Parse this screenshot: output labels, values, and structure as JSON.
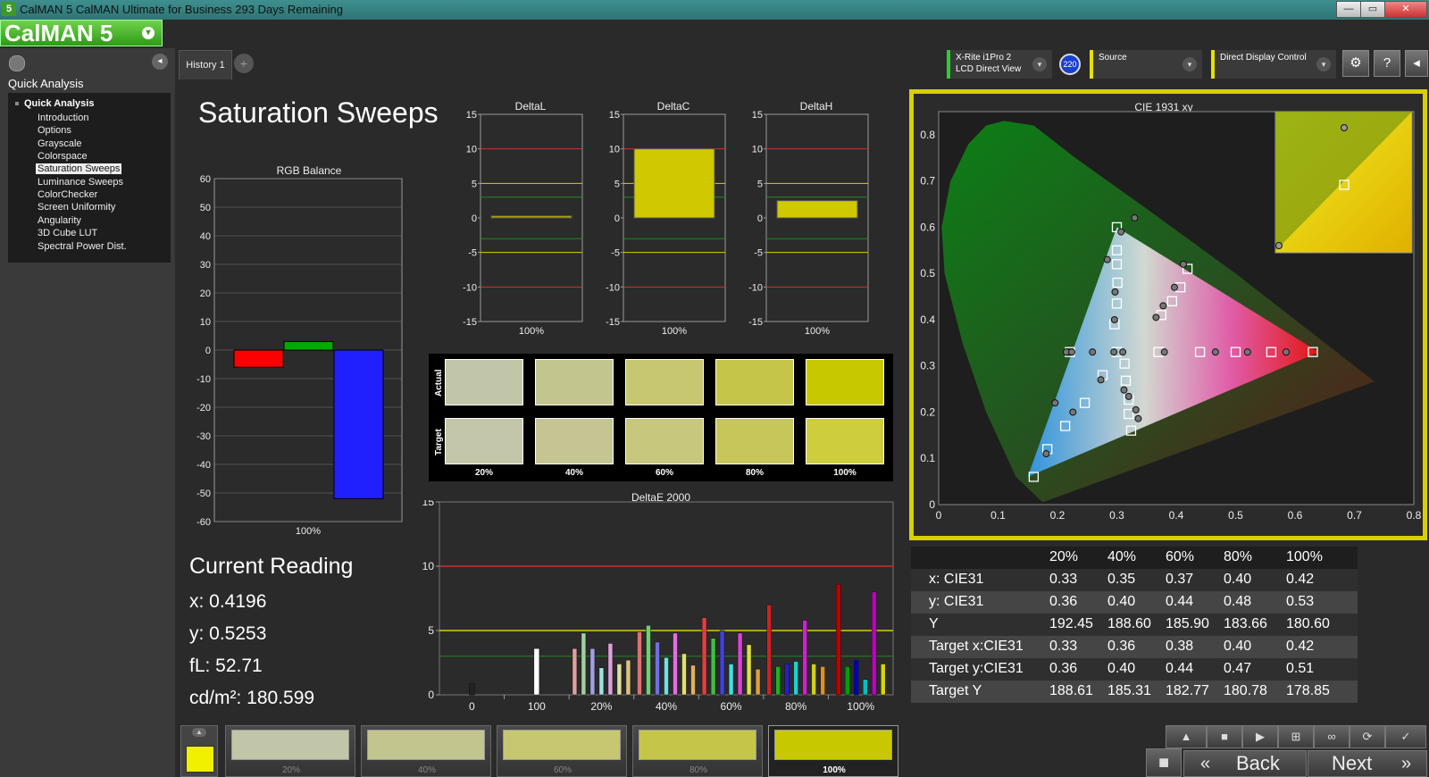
{
  "window": {
    "title": "CalMAN 5 CalMAN Ultimate for Business 293 Days Remaining",
    "minimize": "—",
    "restore": "▭",
    "close": "✕",
    "app_icon": "5"
  },
  "logo": {
    "text": "CalMAN 5",
    "dropdown": "▾"
  },
  "left_panel": {
    "header": "Quick Analysis",
    "collapse": "◂",
    "tree": {
      "root": "Quick Analysis",
      "items": [
        "Introduction",
        "Options",
        "Grayscale",
        "Colorspace",
        "Saturation Sweeps",
        "Luminance Sweeps",
        "ColorChecker",
        "Screen Uniformity",
        "Angularity",
        "3D Cube LUT",
        "Spectral Power Dist."
      ],
      "selected_index": 4
    }
  },
  "tabs": {
    "history": "History 1",
    "add": "+"
  },
  "devices": {
    "meter": {
      "line1": "X-Rite i1Pro 2",
      "line2": "LCD Direct View",
      "arrow": "▾"
    },
    "meter_badge": "220",
    "source": {
      "label": "Source",
      "arrow": "▾"
    },
    "display": {
      "label": "Direct Display Control",
      "arrow": "▾"
    },
    "settings_icon": "⚙",
    "help_icon": "?",
    "collapse_icon": "◂"
  },
  "page": {
    "title": "Saturation Sweeps"
  },
  "charts": {
    "rgb_balance": {
      "title": "RGB Balance",
      "xlabel": "100%",
      "ticks": [
        "60",
        "50",
        "40",
        "30",
        "20",
        "10",
        "0",
        "-10",
        "-20",
        "-30",
        "-40",
        "-50",
        "-60"
      ]
    },
    "deltaL": {
      "title": "DeltaL",
      "xlabel": "100%"
    },
    "deltaC": {
      "title": "DeltaC",
      "xlabel": "100%"
    },
    "deltaH": {
      "title": "DeltaH",
      "xlabel": "100%"
    },
    "delta_ticks": [
      "15",
      "10",
      "5",
      "0",
      "-5",
      "-10",
      "-15"
    ],
    "deltaE": {
      "title": "DeltaE 2000",
      "yticks": [
        "15",
        "10",
        "5",
        "0"
      ],
      "xticks": [
        "0",
        "100",
        "20%",
        "40%",
        "60%",
        "80%",
        "100%"
      ]
    },
    "cie": {
      "title": "CIE 1931 xy",
      "yticks": [
        "0.8",
        "0.7",
        "0.6",
        "0.5",
        "0.4",
        "0.3",
        "0.2",
        "0.1",
        "0"
      ],
      "xticks": [
        "0",
        "0.1",
        "0.2",
        "0.3",
        "0.4",
        "0.5",
        "0.6",
        "0.7",
        "0.8"
      ]
    }
  },
  "chart_data": [
    {
      "type": "bar",
      "title": "RGB Balance",
      "categories": [
        "100%"
      ],
      "series": [
        {
          "name": "Red",
          "values": [
            -6
          ]
        },
        {
          "name": "Green",
          "values": [
            3
          ]
        },
        {
          "name": "Blue",
          "values": [
            -52
          ]
        }
      ],
      "ylim": [
        -60,
        60
      ],
      "colors": [
        "#ff0000",
        "#00aa00",
        "#2020ff"
      ]
    },
    {
      "type": "bar",
      "title": "DeltaL",
      "categories": [
        "100%"
      ],
      "values": [
        0.3
      ],
      "ylim": [
        -15,
        15
      ]
    },
    {
      "type": "bar",
      "title": "DeltaC",
      "categories": [
        "100%"
      ],
      "values": [
        10
      ],
      "ylim": [
        -15,
        15
      ]
    },
    {
      "type": "bar",
      "title": "DeltaH",
      "categories": [
        "100%"
      ],
      "values": [
        2.5
      ],
      "ylim": [
        -15,
        15
      ]
    },
    {
      "type": "bar",
      "title": "DeltaE 2000",
      "ylim": [
        0,
        15
      ],
      "groups": [
        {
          "label": "0",
          "values": [
            0.9
          ],
          "colors": [
            "#222222"
          ]
        },
        {
          "label": "100",
          "values": [
            3.6
          ],
          "colors": [
            "#ffffff"
          ]
        },
        {
          "label": "20%",
          "values": [
            3.6,
            4.8,
            3.6,
            2.1,
            4.0,
            2.4,
            2.7
          ],
          "colors": [
            "#e0a0a0",
            "#a0d0a0",
            "#a0a0e0",
            "#a0e0e0",
            "#e0a0e0",
            "#e0e0a0",
            "#e0c080"
          ]
        },
        {
          "label": "40%",
          "values": [
            4.9,
            5.4,
            4.1,
            2.9,
            4.8,
            3.2,
            2.3
          ],
          "colors": [
            "#e07070",
            "#70d070",
            "#7070e0",
            "#70e0e0",
            "#e070e0",
            "#e0e070",
            "#e0b060"
          ]
        },
        {
          "label": "60%",
          "values": [
            6.0,
            4.4,
            5.0,
            2.4,
            4.8,
            3.9,
            2.0
          ],
          "colors": [
            "#e04040",
            "#40c040",
            "#4040e0",
            "#40e0e0",
            "#e040e0",
            "#e0e040",
            "#e0a040"
          ]
        },
        {
          "label": "80%",
          "values": [
            7.0,
            2.2,
            2.4,
            2.6,
            5.8,
            2.4,
            2.2
          ],
          "colors": [
            "#d02020",
            "#20b020",
            "#2020d0",
            "#20d0d0",
            "#d020d0",
            "#d0d020",
            "#e09020"
          ]
        },
        {
          "label": "100%",
          "values": [
            8.6,
            2.2,
            2.7,
            1.2,
            8.0,
            2.4
          ],
          "colors": [
            "#c00000",
            "#00a000",
            "#0000c0",
            "#00c0c0",
            "#c000c0",
            "#d8d800"
          ]
        }
      ],
      "threshold_lines": [
        10,
        5,
        3
      ]
    },
    {
      "type": "scatter",
      "title": "CIE 1931 xy",
      "xlim": [
        0,
        0.8
      ],
      "ylim": [
        0,
        0.85
      ],
      "gamut": [
        [
          0.64,
          0.33
        ],
        [
          0.3,
          0.6
        ],
        [
          0.15,
          0.06
        ]
      ],
      "actual": [
        [
          0.215,
          0.33
        ],
        [
          0.224,
          0.33
        ],
        [
          0.259,
          0.33
        ],
        [
          0.295,
          0.33
        ],
        [
          0.31,
          0.33
        ],
        [
          0.38,
          0.33
        ],
        [
          0.466,
          0.33
        ],
        [
          0.52,
          0.33
        ],
        [
          0.585,
          0.33
        ],
        [
          0.226,
          0.2
        ],
        [
          0.196,
          0.22
        ],
        [
          0.181,
          0.11
        ],
        [
          0.273,
          0.27
        ],
        [
          0.312,
          0.248
        ],
        [
          0.32,
          0.234
        ],
        [
          0.332,
          0.205
        ],
        [
          0.336,
          0.186
        ],
        [
          0.296,
          0.4
        ],
        [
          0.297,
          0.46
        ],
        [
          0.284,
          0.53
        ],
        [
          0.307,
          0.59
        ],
        [
          0.412,
          0.52
        ],
        [
          0.397,
          0.47
        ],
        [
          0.378,
          0.43
        ],
        [
          0.366,
          0.405
        ],
        [
          0.33,
          0.62
        ]
      ],
      "target": [
        [
          0.221,
          0.33
        ],
        [
          0.3,
          0.33
        ],
        [
          0.37,
          0.33
        ],
        [
          0.44,
          0.33
        ],
        [
          0.5,
          0.33
        ],
        [
          0.56,
          0.33
        ],
        [
          0.63,
          0.33
        ],
        [
          0.16,
          0.06
        ],
        [
          0.183,
          0.12
        ],
        [
          0.213,
          0.17
        ],
        [
          0.246,
          0.22
        ],
        [
          0.276,
          0.28
        ],
        [
          0.313,
          0.305
        ],
        [
          0.315,
          0.268
        ],
        [
          0.32,
          0.227
        ],
        [
          0.32,
          0.196
        ],
        [
          0.324,
          0.16
        ],
        [
          0.296,
          0.39
        ],
        [
          0.3,
          0.435
        ],
        [
          0.301,
          0.48
        ],
        [
          0.3,
          0.52
        ],
        [
          0.3,
          0.55
        ],
        [
          0.3,
          0.6
        ],
        [
          0.419,
          0.51
        ],
        [
          0.407,
          0.47
        ],
        [
          0.393,
          0.44
        ],
        [
          0.375,
          0.41
        ]
      ]
    }
  ],
  "reading": {
    "title": "Current Reading",
    "x": "x: 0.4196",
    "y": "y: 0.5253",
    "fL": "fL: 52.71",
    "cd": "cd/m²: 180.599"
  },
  "swatches": {
    "actual_label": "Actual",
    "target_label": "Target",
    "labels": [
      "20%",
      "40%",
      "60%",
      "80%",
      "100%"
    ],
    "actual_colors": [
      "#c2c6a8",
      "#c3c58e",
      "#c7c771",
      "#c5c649",
      "#c8c800"
    ],
    "target_colors": [
      "#c4c6aa",
      "#c5c594",
      "#c7c77d",
      "#c6c65b",
      "#cdcd3d"
    ]
  },
  "table": {
    "headers": [
      "20%",
      "40%",
      "60%",
      "80%",
      "100%"
    ],
    "rows": [
      {
        "label": "x: CIE31",
        "values": [
          "0.33",
          "0.35",
          "0.37",
          "0.40",
          "0.42"
        ]
      },
      {
        "label": "y: CIE31",
        "values": [
          "0.36",
          "0.40",
          "0.44",
          "0.48",
          "0.53"
        ]
      },
      {
        "label": "Y",
        "values": [
          "192.45",
          "188.60",
          "185.90",
          "183.66",
          "180.60"
        ]
      },
      {
        "label": "Target x:CIE31",
        "values": [
          "0.33",
          "0.36",
          "0.38",
          "0.40",
          "0.42"
        ]
      },
      {
        "label": "Target y:CIE31",
        "values": [
          "0.36",
          "0.40",
          "0.44",
          "0.47",
          "0.51"
        ]
      },
      {
        "label": "Target Y",
        "values": [
          "188.61",
          "185.31",
          "182.77",
          "180.78",
          "178.85"
        ]
      }
    ]
  },
  "bottom": {
    "up_arrow": "▲",
    "swatches": [
      {
        "label": "20%",
        "color": "#c2c6a8"
      },
      {
        "label": "40%",
        "color": "#c3c58e"
      },
      {
        "label": "60%",
        "color": "#c7c771"
      },
      {
        "label": "80%",
        "color": "#c5c649"
      },
      {
        "label": "100%",
        "color": "#c8c800"
      }
    ],
    "controls": {
      "up": "▲",
      "stop": "■",
      "play": "▶",
      "fit": "⊞",
      "loop": "∞",
      "refresh": "⟳",
      "check": "✓"
    },
    "stop_icon": "■",
    "back": "Back",
    "next": "Next",
    "back_arrow": "«",
    "next_arrow": "»"
  }
}
